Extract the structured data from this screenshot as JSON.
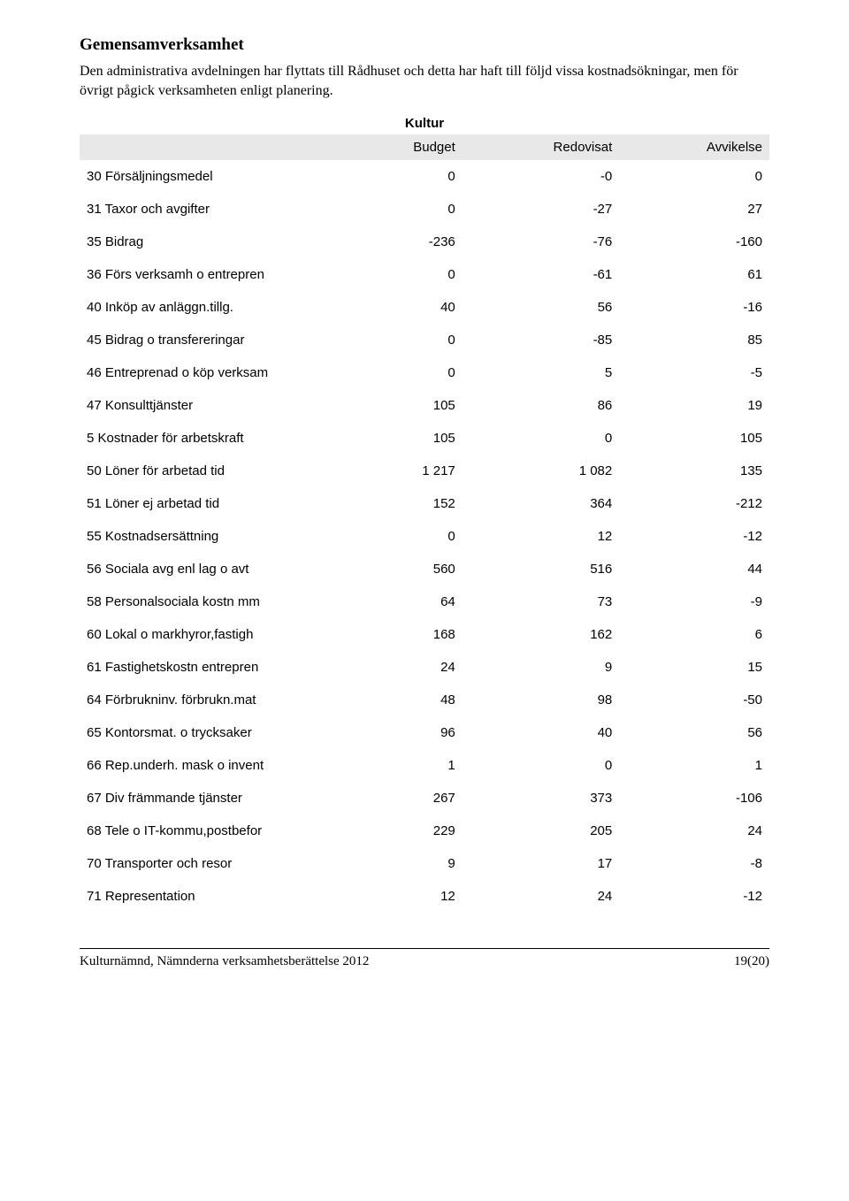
{
  "section_title": "Gemensamverksamhet",
  "body_text": "Den administrativa avdelningen har flyttats till Rådhuset och detta har haft till följd vissa kostnadsökningar, men för övrigt pågick verksamheten enligt planering.",
  "table": {
    "title": "Kultur",
    "header_bg": "#e8e8e8",
    "columns": [
      "",
      "Budget",
      "Redovisat",
      "Avvikelse"
    ],
    "rows": [
      [
        "30 Försäljningsmedel",
        "0",
        "-0",
        "0"
      ],
      [
        "31 Taxor och avgifter",
        "0",
        "-27",
        "27"
      ],
      [
        "35 Bidrag",
        "-236",
        "-76",
        "-160"
      ],
      [
        "36 Förs verksamh o entrepren",
        "0",
        "-61",
        "61"
      ],
      [
        "40 Inköp av anläggn.tillg.",
        "40",
        "56",
        "-16"
      ],
      [
        "45 Bidrag o transfereringar",
        "0",
        "-85",
        "85"
      ],
      [
        "46 Entreprenad o köp verksam",
        "0",
        "5",
        "-5"
      ],
      [
        "47 Konsulttjänster",
        "105",
        "86",
        "19"
      ],
      [
        "5 Kostnader för arbetskraft",
        "105",
        "0",
        "105"
      ],
      [
        "50 Löner för arbetad tid",
        "1 217",
        "1 082",
        "135"
      ],
      [
        "51 Löner ej arbetad tid",
        "152",
        "364",
        "-212"
      ],
      [
        "55 Kostnadsersättning",
        "0",
        "12",
        "-12"
      ],
      [
        "56 Sociala avg enl lag o avt",
        "560",
        "516",
        "44"
      ],
      [
        "58 Personalsociala kostn mm",
        "64",
        "73",
        "-9"
      ],
      [
        "60 Lokal o markhyror,fastigh",
        "168",
        "162",
        "6"
      ],
      [
        "61 Fastighetskostn entrepren",
        "24",
        "9",
        "15"
      ],
      [
        "64 Förbrukninv. förbrukn.mat",
        "48",
        "98",
        "-50"
      ],
      [
        "65 Kontorsmat. o trycksaker",
        "96",
        "40",
        "56"
      ],
      [
        "66 Rep.underh. mask o invent",
        "1",
        "0",
        "1"
      ],
      [
        "67 Div främmande tjänster",
        "267",
        "373",
        "-106"
      ],
      [
        "68 Tele o IT-kommu,postbefor",
        "229",
        "205",
        "24"
      ],
      [
        "70 Transporter och resor",
        "9",
        "17",
        "-8"
      ],
      [
        "71 Representation",
        "12",
        "24",
        "-12"
      ]
    ]
  },
  "footer": {
    "left": "Kulturnämnd, Nämnderna verksamhetsberättelse 2012",
    "right": "19(20)"
  }
}
